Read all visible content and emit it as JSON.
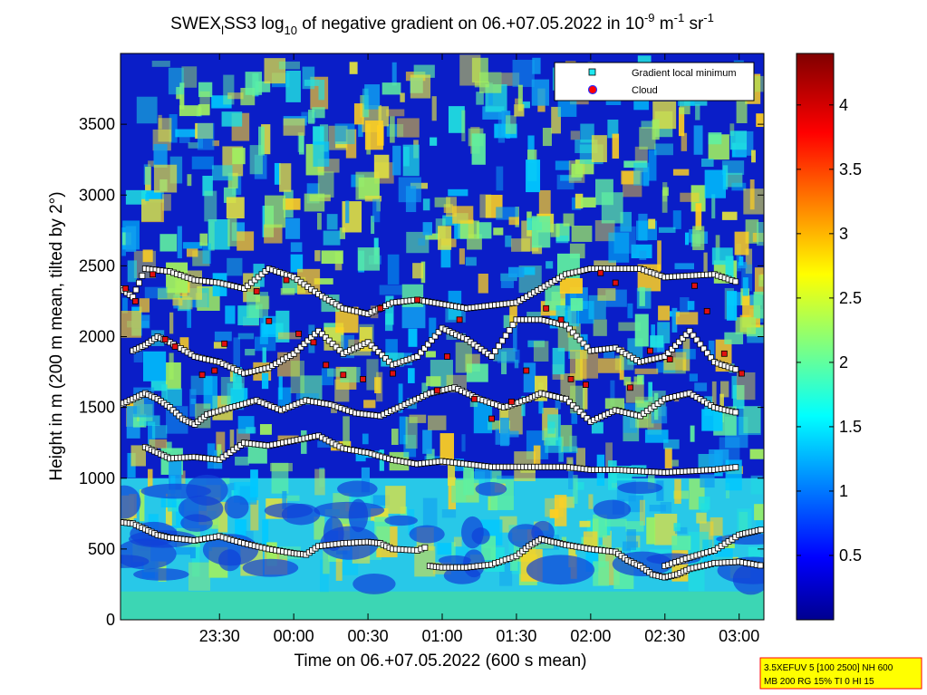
{
  "chart_data": {
    "type": "heatmap",
    "title": {
      "part1": "SWEX",
      "sub1": "l",
      "part2": "SS3 log",
      "sub2": "10",
      "part3": " of negative gradient on 06.+07.05.2022 in 10",
      "sup1": "-9",
      "part4": " m",
      "sup2": "-1",
      "part5": " sr",
      "sup3": "-1"
    },
    "xlabel": "Time on 06.+07.05.2022 (600 s mean)",
    "ylabel": "Height in m (200 m mean, tilted by 2°)",
    "x_tick_labels": [
      "23:30",
      "00:00",
      "00:30",
      "01:00",
      "01:30",
      "02:00",
      "02:30",
      "03:00"
    ],
    "x_tick_minutes": [
      30,
      60,
      90,
      120,
      150,
      180,
      210,
      240
    ],
    "xlim_minutes": [
      -10,
      250
    ],
    "y_ticks": [
      0,
      500,
      1000,
      1500,
      2000,
      2500,
      3000,
      3500
    ],
    "ylim": [
      0,
      4000
    ],
    "colorbar": {
      "min": 0,
      "max": 4.4,
      "ticks": [
        0.5,
        1,
        1.5,
        2,
        2.5,
        3,
        3.5,
        4
      ],
      "tick_labels": [
        "0.5",
        "1",
        "1.5",
        "2",
        "2.5",
        "3",
        "3.5",
        "4"
      ],
      "colormap": "jet"
    },
    "legend": {
      "placement": "top-right",
      "entries": [
        {
          "label": "Gradient local minimum",
          "marker": "square",
          "color": "#1ee8f0"
        },
        {
          "label": "Cloud",
          "marker": "circle",
          "color": "#ff0000",
          "edge": "#2020ff"
        }
      ]
    },
    "info_box": {
      "line1": "3.5XEFUV 5 [100 2500] NH 600",
      "line2": "MB 200 RG 15% TI 0 HI 15",
      "background": "#ffff00",
      "border": "#ff0000"
    },
    "gradient_minimum_layers": [
      {
        "name": "",
        "points": [
          [
            -10,
            690
          ],
          [
            -5,
            680
          ],
          [
            0,
            640
          ],
          [
            5,
            600
          ],
          [
            10,
            580
          ],
          [
            20,
            560
          ],
          [
            30,
            590
          ],
          [
            40,
            540
          ],
          [
            50,
            500
          ],
          [
            60,
            470
          ],
          [
            65,
            460
          ],
          [
            70,
            520
          ],
          [
            80,
            540
          ],
          [
            90,
            550
          ],
          [
            95,
            540
          ],
          [
            100,
            500
          ],
          [
            110,
            490
          ],
          [
            113,
            510
          ],
          [
            115,
            380
          ],
          [
            120,
            370
          ],
          [
            130,
            370
          ],
          [
            140,
            390
          ],
          [
            150,
            450
          ],
          [
            155,
            520
          ],
          [
            160,
            570
          ],
          [
            165,
            550
          ],
          [
            170,
            530
          ],
          [
            180,
            500
          ],
          [
            190,
            480
          ],
          [
            195,
            420
          ],
          [
            200,
            380
          ],
          [
            205,
            320
          ],
          [
            210,
            300
          ],
          [
            215,
            320
          ],
          [
            220,
            360
          ],
          [
            230,
            400
          ],
          [
            240,
            410
          ],
          [
            250,
            380
          ]
        ]
      },
      {
        "name": "",
        "points": [
          [
            210,
            380
          ],
          [
            220,
            440
          ],
          [
            230,
            490
          ],
          [
            240,
            600
          ],
          [
            245,
            620
          ],
          [
            250,
            640
          ]
        ]
      },
      {
        "name": "",
        "points": [
          [
            -10,
            1520
          ],
          [
            -5,
            1560
          ],
          [
            0,
            1600
          ],
          [
            5,
            1560
          ],
          [
            10,
            1500
          ],
          [
            15,
            1420
          ],
          [
            20,
            1380
          ],
          [
            25,
            1450
          ],
          [
            35,
            1500
          ],
          [
            45,
            1550
          ],
          [
            55,
            1480
          ],
          [
            65,
            1550
          ],
          [
            75,
            1520
          ],
          [
            85,
            1460
          ],
          [
            95,
            1440
          ],
          [
            105,
            1520
          ],
          [
            115,
            1600
          ],
          [
            125,
            1640
          ],
          [
            135,
            1560
          ],
          [
            145,
            1500
          ],
          [
            155,
            1560
          ],
          [
            160,
            1600
          ],
          [
            170,
            1560
          ],
          [
            180,
            1400
          ],
          [
            190,
            1480
          ],
          [
            200,
            1440
          ],
          [
            210,
            1560
          ],
          [
            220,
            1600
          ],
          [
            230,
            1500
          ],
          [
            240,
            1460
          ]
        ]
      },
      {
        "name": "",
        "points": [
          [
            -5,
            1900
          ],
          [
            0,
            1940
          ],
          [
            5,
            2000
          ],
          [
            10,
            1960
          ],
          [
            20,
            1860
          ],
          [
            30,
            1820
          ],
          [
            40,
            1740
          ],
          [
            50,
            1780
          ],
          [
            60,
            1880
          ],
          [
            70,
            2040
          ],
          [
            80,
            1880
          ],
          [
            90,
            1960
          ],
          [
            100,
            1800
          ],
          [
            110,
            1860
          ],
          [
            120,
            2060
          ],
          [
            130,
            1980
          ],
          [
            140,
            1860
          ],
          [
            150,
            2120
          ],
          [
            160,
            2120
          ],
          [
            170,
            2080
          ],
          [
            180,
            1900
          ],
          [
            190,
            1920
          ],
          [
            200,
            1820
          ],
          [
            210,
            1860
          ],
          [
            220,
            2040
          ],
          [
            230,
            1820
          ],
          [
            240,
            1760
          ]
        ]
      },
      {
        "name": "",
        "points": [
          [
            -10,
            2340
          ],
          [
            -5,
            2280
          ],
          [
            0,
            2480
          ],
          [
            10,
            2460
          ],
          [
            20,
            2400
          ],
          [
            30,
            2380
          ],
          [
            40,
            2340
          ],
          [
            50,
            2480
          ],
          [
            60,
            2420
          ],
          [
            70,
            2300
          ],
          [
            80,
            2200
          ],
          [
            90,
            2160
          ],
          [
            100,
            2240
          ],
          [
            110,
            2260
          ],
          [
            130,
            2200
          ],
          [
            150,
            2240
          ],
          [
            170,
            2440
          ],
          [
            180,
            2480
          ],
          [
            200,
            2480
          ],
          [
            210,
            2420
          ],
          [
            230,
            2440
          ],
          [
            240,
            2380
          ]
        ]
      },
      {
        "name": "",
        "points": [
          [
            0,
            1220
          ],
          [
            5,
            1180
          ],
          [
            10,
            1140
          ],
          [
            20,
            1150
          ],
          [
            30,
            1130
          ],
          [
            40,
            1250
          ],
          [
            50,
            1230
          ],
          [
            70,
            1300
          ],
          [
            80,
            1210
          ],
          [
            90,
            1180
          ],
          [
            100,
            1130
          ],
          [
            110,
            1100
          ],
          [
            120,
            1120
          ],
          [
            140,
            1080
          ],
          [
            160,
            1080
          ],
          [
            170,
            1080
          ],
          [
            180,
            1060
          ],
          [
            190,
            1060
          ],
          [
            210,
            1040
          ],
          [
            230,
            1060
          ],
          [
            240,
            1080
          ]
        ]
      }
    ],
    "cloud_points": [
      [
        -8,
        2340
      ],
      [
        -4,
        2250
      ],
      [
        3,
        2440
      ],
      [
        8,
        1980
      ],
      [
        12,
        1930
      ],
      [
        23,
        1730
      ],
      [
        28,
        1760
      ],
      [
        32,
        1950
      ],
      [
        45,
        2320
      ],
      [
        50,
        2110
      ],
      [
        57,
        2400
      ],
      [
        62,
        2020
      ],
      [
        68,
        1960
      ],
      [
        73,
        1800
      ],
      [
        80,
        1730
      ],
      [
        88,
        1700
      ],
      [
        95,
        2200
      ],
      [
        100,
        1740
      ],
      [
        110,
        2260
      ],
      [
        118,
        1620
      ],
      [
        122,
        1860
      ],
      [
        127,
        2120
      ],
      [
        133,
        1560
      ],
      [
        140,
        1420
      ],
      [
        148,
        1540
      ],
      [
        154,
        1760
      ],
      [
        162,
        2200
      ],
      [
        168,
        2120
      ],
      [
        172,
        1700
      ],
      [
        178,
        1660
      ],
      [
        184,
        2450
      ],
      [
        190,
        2380
      ],
      [
        196,
        1640
      ],
      [
        204,
        1900
      ],
      [
        212,
        1840
      ],
      [
        222,
        2360
      ],
      [
        227,
        2180
      ],
      [
        234,
        1880
      ],
      [
        241,
        1740
      ]
    ]
  }
}
